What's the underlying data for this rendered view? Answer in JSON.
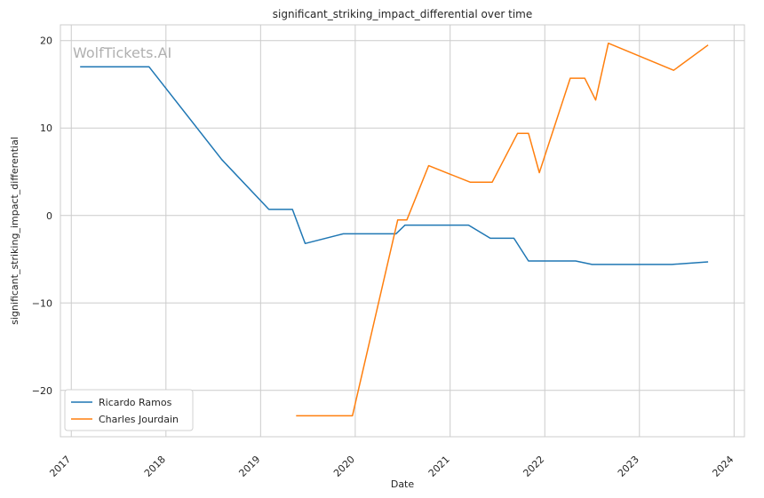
{
  "chart_data": {
    "type": "line",
    "title": "significant_striking_impact_differential over time",
    "xlabel": "Date",
    "ylabel": "significant_striking_impact_differential",
    "watermark": "WolfTickets.AI",
    "x_ticks": [
      "2017",
      "2018",
      "2019",
      "2020",
      "2021",
      "2022",
      "2023",
      "2024"
    ],
    "y_ticks": [
      -20,
      -10,
      0,
      10,
      20
    ],
    "y_tick_labels": [
      "−20",
      "−10",
      "0",
      "10",
      "20"
    ],
    "xlim": [
      "2016-11-20",
      "2024-02-10"
    ],
    "ylim": [
      -25.3,
      21.8
    ],
    "grid": true,
    "legend_position": "lower-left",
    "series": [
      {
        "name": "Ricardo Ramos",
        "color": "#1f77b4",
        "points": [
          [
            "2017-02-04",
            17.0
          ],
          [
            "2017-10-28",
            17.0
          ],
          [
            "2018-08-04",
            6.4
          ],
          [
            "2019-02-02",
            0.7
          ],
          [
            "2019-05-04",
            0.7
          ],
          [
            "2019-06-22",
            -3.2
          ],
          [
            "2019-11-16",
            -2.1
          ],
          [
            "2020-06-06",
            -2.1
          ],
          [
            "2020-07-11",
            -1.1
          ],
          [
            "2021-03-13",
            -1.1
          ],
          [
            "2021-06-05",
            -2.6
          ],
          [
            "2021-09-04",
            -2.6
          ],
          [
            "2021-10-30",
            -5.2
          ],
          [
            "2022-04-30",
            -5.2
          ],
          [
            "2022-07-02",
            -5.6
          ],
          [
            "2023-05-06",
            -5.6
          ],
          [
            "2023-09-23",
            -5.3
          ]
        ]
      },
      {
        "name": "Charles Jourdain",
        "color": "#ff7f0e",
        "points": [
          [
            "2019-05-18",
            -22.9
          ],
          [
            "2019-12-21",
            -22.9
          ],
          [
            "2020-06-13",
            -0.5
          ],
          [
            "2020-07-18",
            -0.5
          ],
          [
            "2020-10-10",
            5.7
          ],
          [
            "2021-03-20",
            3.8
          ],
          [
            "2021-06-12",
            3.8
          ],
          [
            "2021-09-18",
            9.4
          ],
          [
            "2021-10-30",
            9.4
          ],
          [
            "2021-12-11",
            4.9
          ],
          [
            "2022-04-09",
            15.7
          ],
          [
            "2022-06-04",
            15.7
          ],
          [
            "2022-07-16",
            13.2
          ],
          [
            "2022-09-03",
            19.7
          ],
          [
            "2023-05-13",
            16.6
          ],
          [
            "2023-09-23",
            19.5
          ]
        ]
      }
    ]
  }
}
